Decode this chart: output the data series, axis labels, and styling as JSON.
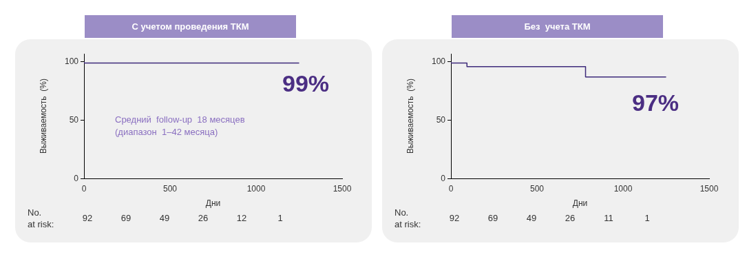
{
  "chart_data": [
    {
      "type": "step",
      "title": "С учетом проведения ТКМ",
      "xlabel": "Дни",
      "ylabel": "Выживаемость  (%)",
      "series": [
        {
          "color": "#3d2a7a",
          "x": [
            0,
            92,
            1250
          ],
          "values": [
            100,
            99,
            99
          ]
        }
      ],
      "xlim": [
        0,
        1500
      ],
      "xticks": [
        0,
        500,
        1000,
        1500
      ],
      "ylim": [
        0,
        107
      ],
      "yticks": [
        0,
        50,
        100
      ],
      "grid": false,
      "legend": false,
      "marker": "none",
      "line_style": "solid",
      "annotations": [
        "99%",
        "No.\nat risk:",
        "92",
        "69",
        "49",
        "26",
        "12",
        "1",
        "Средний  follow-up  18 месяцев\n(диапазон  1–42 месяца)"
      ]
    },
    {
      "type": "step",
      "title": "Без  учета ТКМ",
      "xlabel": "Дни",
      "ylabel": "Выживаемость  (%)",
      "series": [
        {
          "color": "#3d2a7a",
          "x": [
            0,
            93,
            782,
            1082,
            1250
          ],
          "values": [
            100,
            99,
            96,
            87,
            87
          ]
        }
      ],
      "xlim": [
        0,
        1500
      ],
      "xticks": [
        0,
        500,
        1000,
        1500
      ],
      "ylim": [
        0,
        107
      ],
      "yticks": [
        0,
        50,
        100
      ],
      "grid": false,
      "legend": false,
      "marker": "none",
      "line_style": "solid",
      "annotations": [
        "97%",
        "No.\nat risk:",
        "92",
        "69",
        "49",
        "26",
        "11",
        "1"
      ]
    }
  ]
}
